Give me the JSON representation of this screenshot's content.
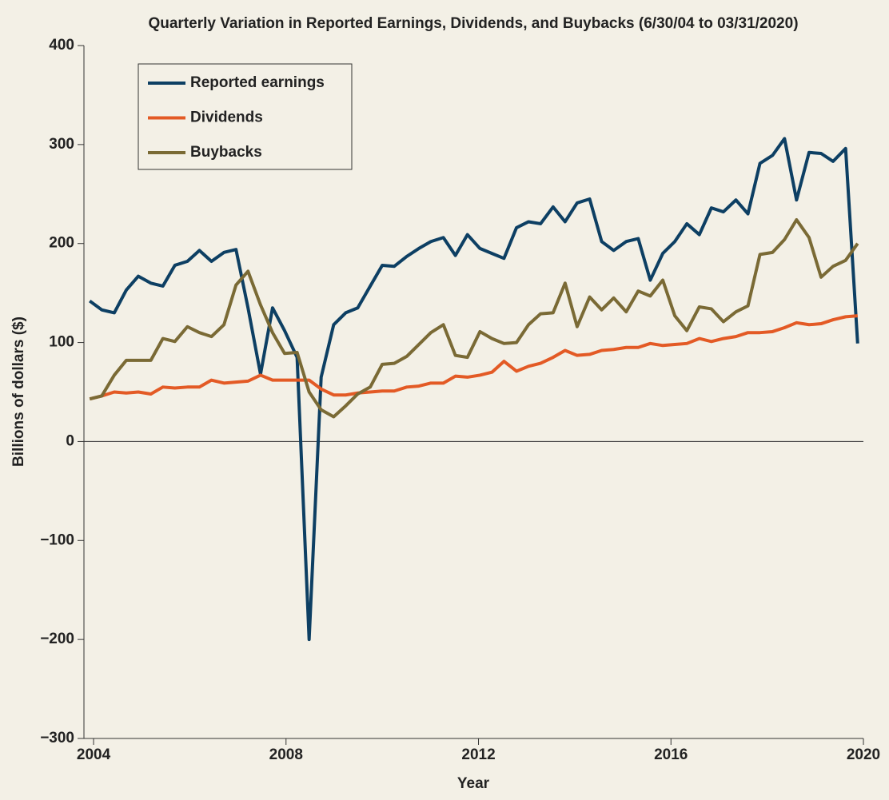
{
  "chart_data": {
    "type": "line",
    "title": "Quarterly Variation in Reported Earnings, Dividends, and Buybacks (6/30/04 to 03/31/2020)",
    "x_label": "Year",
    "y_label": "Billions of dollars ($)",
    "x": [
      2003.92,
      2004.17,
      2004.43,
      2004.68,
      2004.93,
      2005.19,
      2005.44,
      2005.69,
      2005.95,
      2006.2,
      2006.45,
      2006.71,
      2006.96,
      2007.21,
      2007.47,
      2007.72,
      2007.97,
      2008.23,
      2008.48,
      2008.73,
      2008.99,
      2009.24,
      2009.49,
      2009.75,
      2010.0,
      2010.25,
      2010.51,
      2010.76,
      2011.01,
      2011.27,
      2011.52,
      2011.77,
      2012.03,
      2012.28,
      2012.53,
      2012.79,
      2013.04,
      2013.29,
      2013.55,
      2013.8,
      2014.05,
      2014.31,
      2014.56,
      2014.81,
      2015.07,
      2015.32,
      2015.57,
      2015.83,
      2016.08,
      2016.33,
      2016.59,
      2016.84,
      2017.09,
      2017.35,
      2017.6,
      2017.85,
      2018.11,
      2018.36,
      2018.61,
      2018.87,
      2019.12,
      2019.37,
      2019.63,
      2019.88
    ],
    "series": [
      {
        "name": "Reported earnings",
        "color": "#0d3f63",
        "values": [
          142,
          133,
          130,
          153,
          167,
          160,
          157,
          178,
          182,
          193,
          182,
          191,
          194,
          135,
          68,
          135,
          112,
          85,
          -200,
          65,
          118,
          130,
          135,
          157,
          178,
          177,
          187,
          195,
          202,
          206,
          188,
          209,
          195,
          190,
          185,
          216,
          222,
          220,
          237,
          222,
          241,
          245,
          202,
          193,
          202,
          205,
          163,
          190,
          202,
          220,
          209,
          236,
          232,
          244,
          230,
          281,
          289,
          306,
          244,
          292,
          291,
          283,
          296,
          99
        ]
      },
      {
        "name": "Dividends",
        "color": "#e35a25",
        "values": [
          43,
          46,
          50,
          49,
          50,
          48,
          55,
          54,
          55,
          55,
          62,
          59,
          60,
          61,
          67,
          62,
          62,
          62,
          62,
          53,
          47,
          47,
          49,
          50,
          51,
          51,
          55,
          56,
          59,
          59,
          66,
          65,
          67,
          70,
          81,
          71,
          76,
          79,
          85,
          92,
          87,
          88,
          92,
          93,
          95,
          95,
          99,
          97,
          98,
          99,
          104,
          101,
          104,
          106,
          110,
          110,
          111,
          115,
          120,
          118,
          119,
          123,
          126,
          127
        ]
      },
      {
        "name": "Buybacks",
        "color": "#7a6a35",
        "values": [
          43,
          46,
          67,
          82,
          82,
          82,
          104,
          101,
          116,
          110,
          106,
          118,
          158,
          172,
          138,
          110,
          89,
          90,
          50,
          32,
          25,
          36,
          48,
          55,
          78,
          79,
          86,
          98,
          110,
          118,
          87,
          85,
          111,
          104,
          99,
          100,
          118,
          129,
          130,
          160,
          116,
          146,
          133,
          145,
          131,
          152,
          147,
          163,
          127,
          112,
          136,
          134,
          121,
          131,
          137,
          189,
          191,
          204,
          224,
          206,
          166,
          177,
          183,
          200
        ]
      }
    ],
    "xlim": [
      2003.8,
      2020
    ],
    "xticks": [
      2004,
      2008,
      2012,
      2016,
      2020
    ],
    "ylim": [
      -300,
      400
    ],
    "yticks": [
      {
        "value": -300,
        "label": "−300"
      },
      {
        "value": -200,
        "label": "−200"
      },
      {
        "value": -100,
        "label": "−100"
      },
      0,
      100,
      200,
      300,
      400
    ],
    "legend": "upper left"
  }
}
